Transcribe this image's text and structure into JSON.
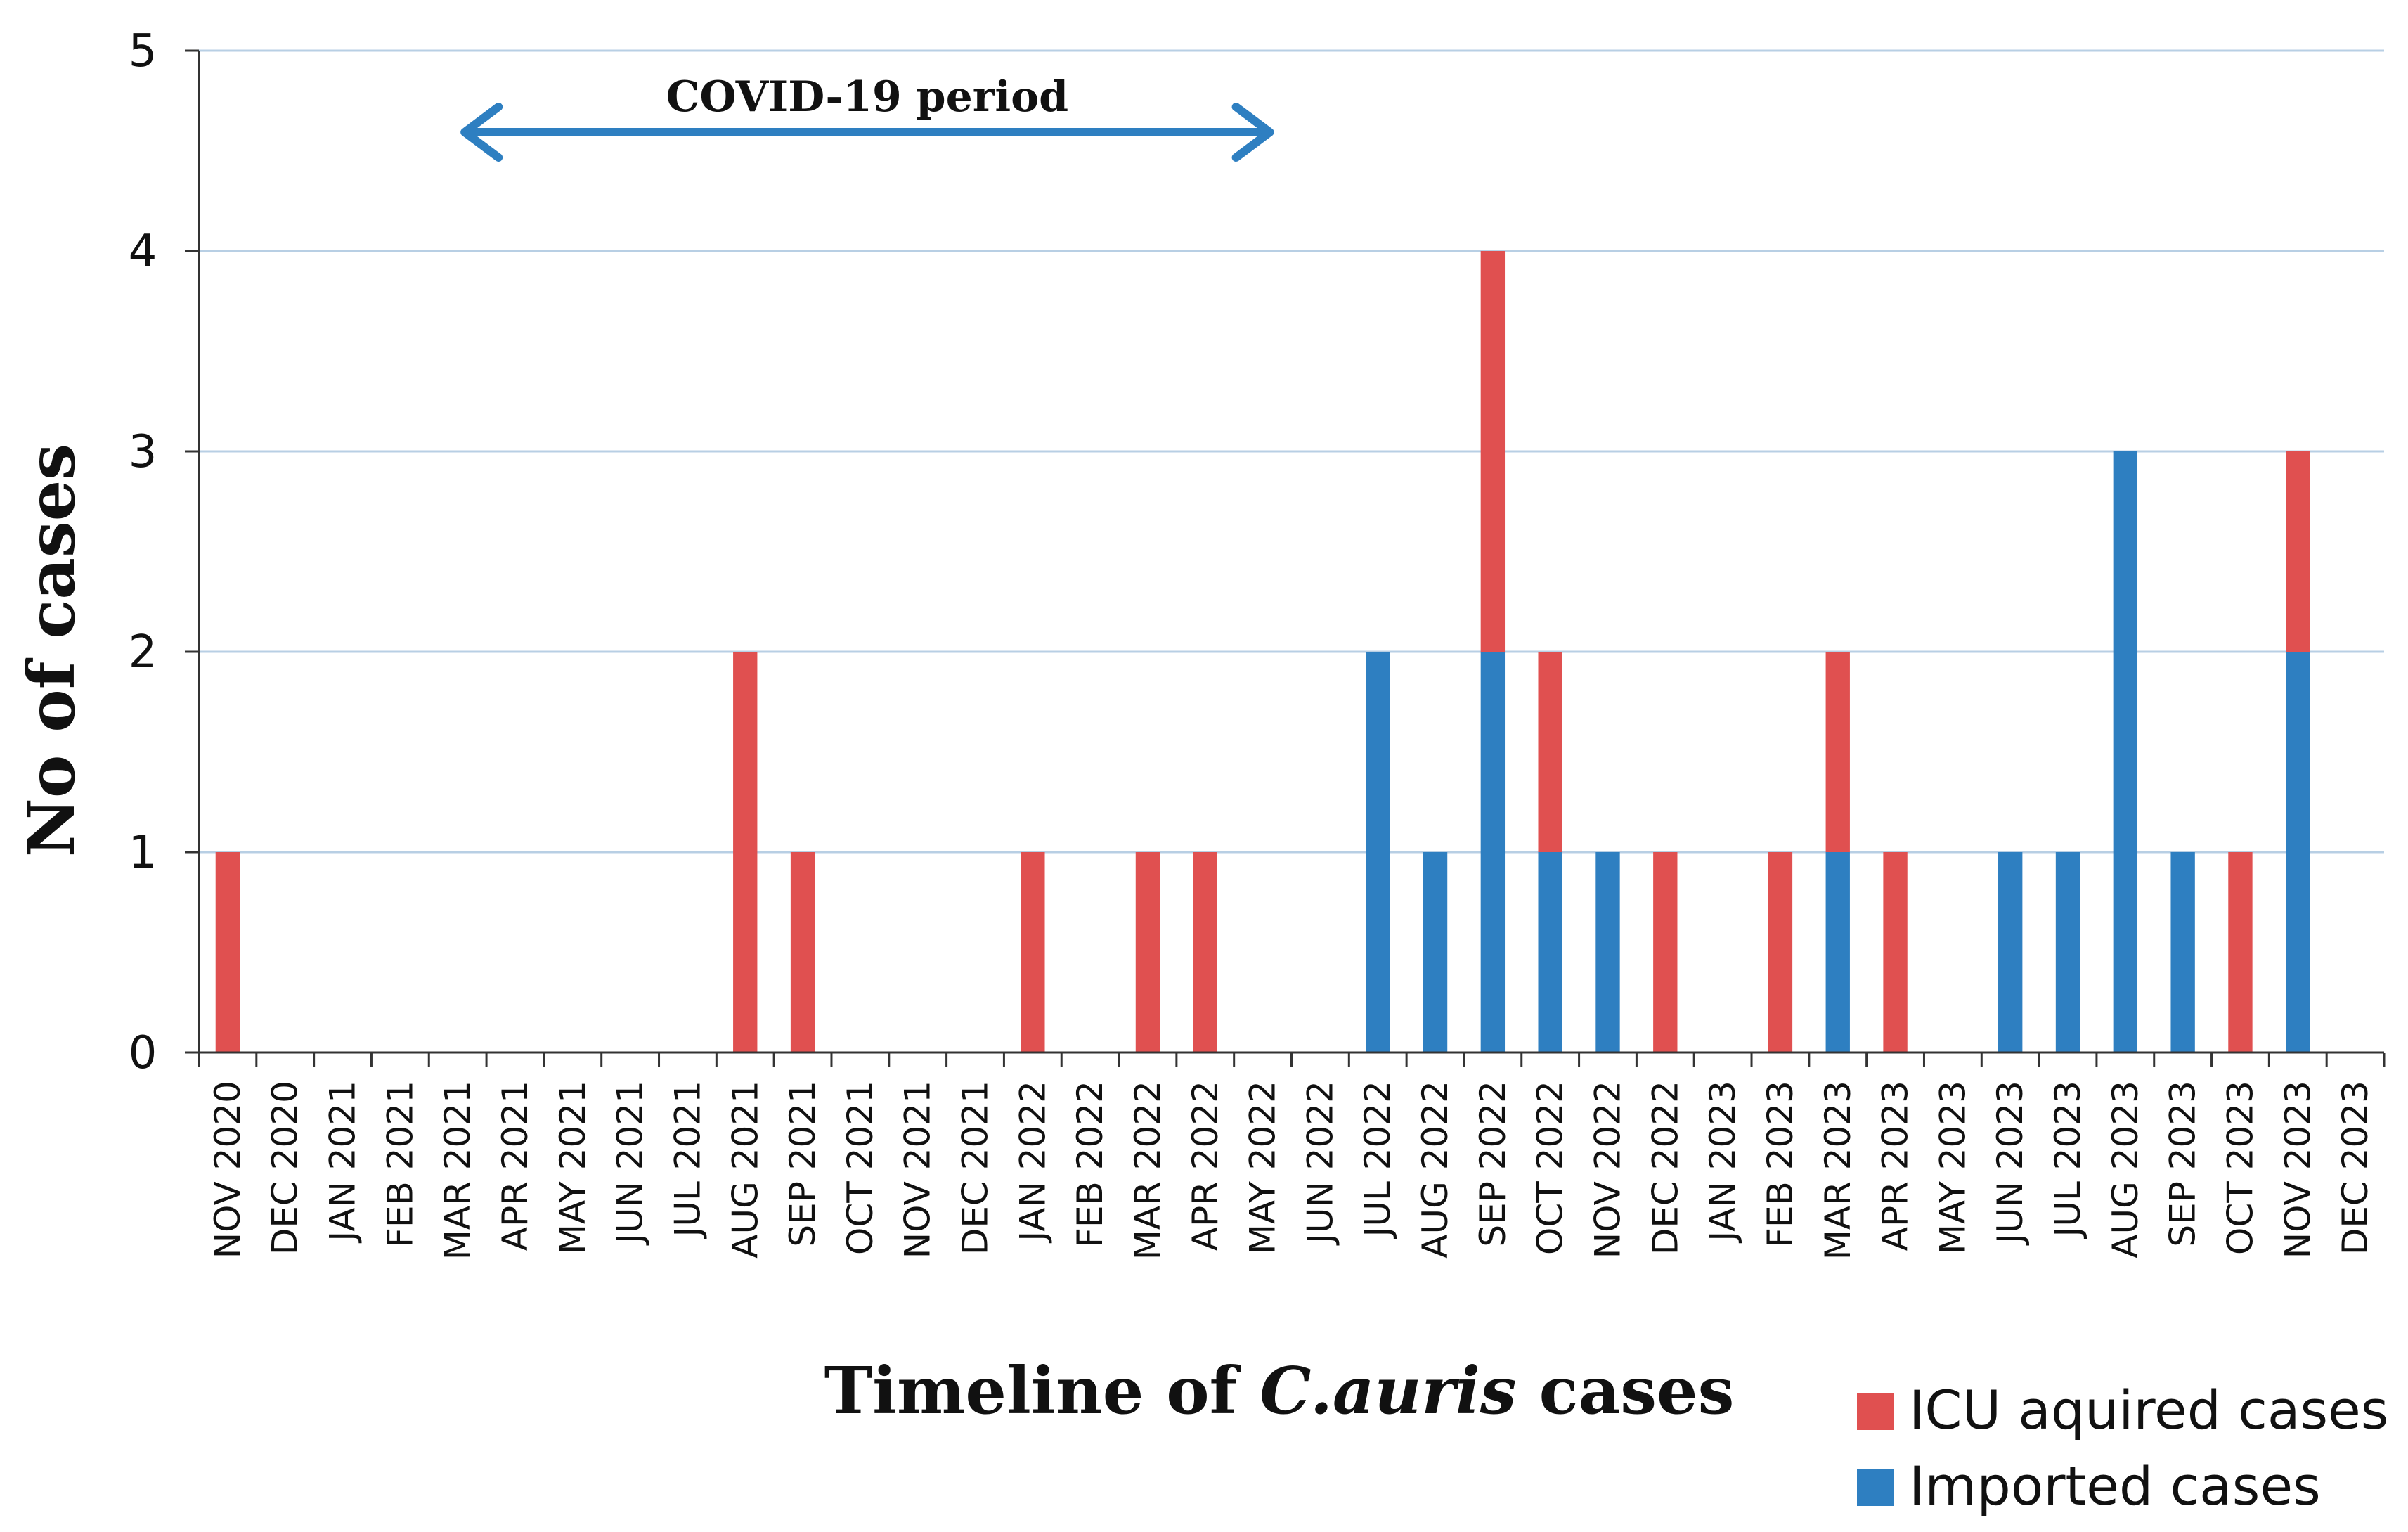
{
  "chart_data": {
    "type": "bar",
    "stacked": true,
    "title": "",
    "xlabel": [
      "Timeline of ",
      "C.auris",
      " cases"
    ],
    "ylabel": "No of cases",
    "ylim": [
      0,
      5
    ],
    "yticks": [
      "0",
      "1",
      "2",
      "3",
      "4",
      "5"
    ],
    "grid": true,
    "legend_position": "bottom-right",
    "categories": [
      "NOV 2020",
      "DEC 2020",
      "JAN 2021",
      "FEB 2021",
      "MAR 2021",
      "APR 2021",
      "MAY 2021",
      "JUN 2021",
      "JUL 2021",
      "AUG 2021",
      "SEP 2021",
      "OCT 2021",
      "NOV 2021",
      "DEC 2021",
      "JAN 2022",
      "FEB 2022",
      "MAR 2022",
      "APR 2022",
      "MAY 2022",
      "JUN 2022",
      "JUL 2022",
      "AUG 2022",
      "SEP 2022",
      "OCT 2022",
      "NOV 2022",
      "DEC 2022",
      "JAN 2023",
      "FEB 2023",
      "MAR 2023",
      "APR 2023",
      "MAY 2023",
      "JUN 2023",
      "JUL 2023",
      "AUG 2023",
      "SEP 2023",
      "OCT 2023",
      "NOV 2023",
      "DEC 2023"
    ],
    "series": [
      {
        "name": "Imported cases",
        "color": "#2e7fc1",
        "values": [
          0,
          0,
          0,
          0,
          0,
          0,
          0,
          0,
          0,
          0,
          0,
          0,
          0,
          0,
          0,
          0,
          0,
          0,
          0,
          0,
          2,
          1,
          2,
          1,
          1,
          0,
          0,
          0,
          1,
          0,
          0,
          1,
          1,
          3,
          1,
          0,
          2,
          0
        ]
      },
      {
        "name": "ICU aquired cases",
        "color": "#e05050",
        "values": [
          1,
          0,
          0,
          0,
          0,
          0,
          0,
          0,
          0,
          2,
          1,
          0,
          0,
          0,
          1,
          0,
          1,
          1,
          0,
          0,
          0,
          0,
          2,
          1,
          0,
          1,
          0,
          1,
          1,
          1,
          0,
          0,
          0,
          0,
          0,
          1,
          1,
          0
        ]
      }
    ],
    "legend_order": [
      "ICU aquired cases",
      "Imported cases"
    ],
    "annotation": {
      "text": "COVID-19 period",
      "from_category": "MAR 2021",
      "to_category": "MAY 2022",
      "color": "#2e7fc1"
    }
  }
}
